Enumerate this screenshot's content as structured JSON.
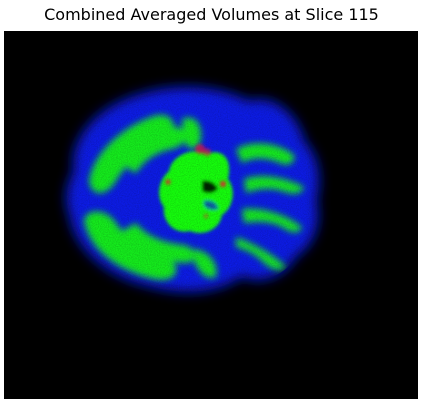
{
  "figure": {
    "title": "Combined Averaged Volumes at Slice 115",
    "image": {
      "description_colors": {
        "background": "#000000",
        "blue_channel": "#0a1ee6",
        "green_channel": "#19ff0a",
        "red_channel": "#e61432"
      }
    }
  }
}
